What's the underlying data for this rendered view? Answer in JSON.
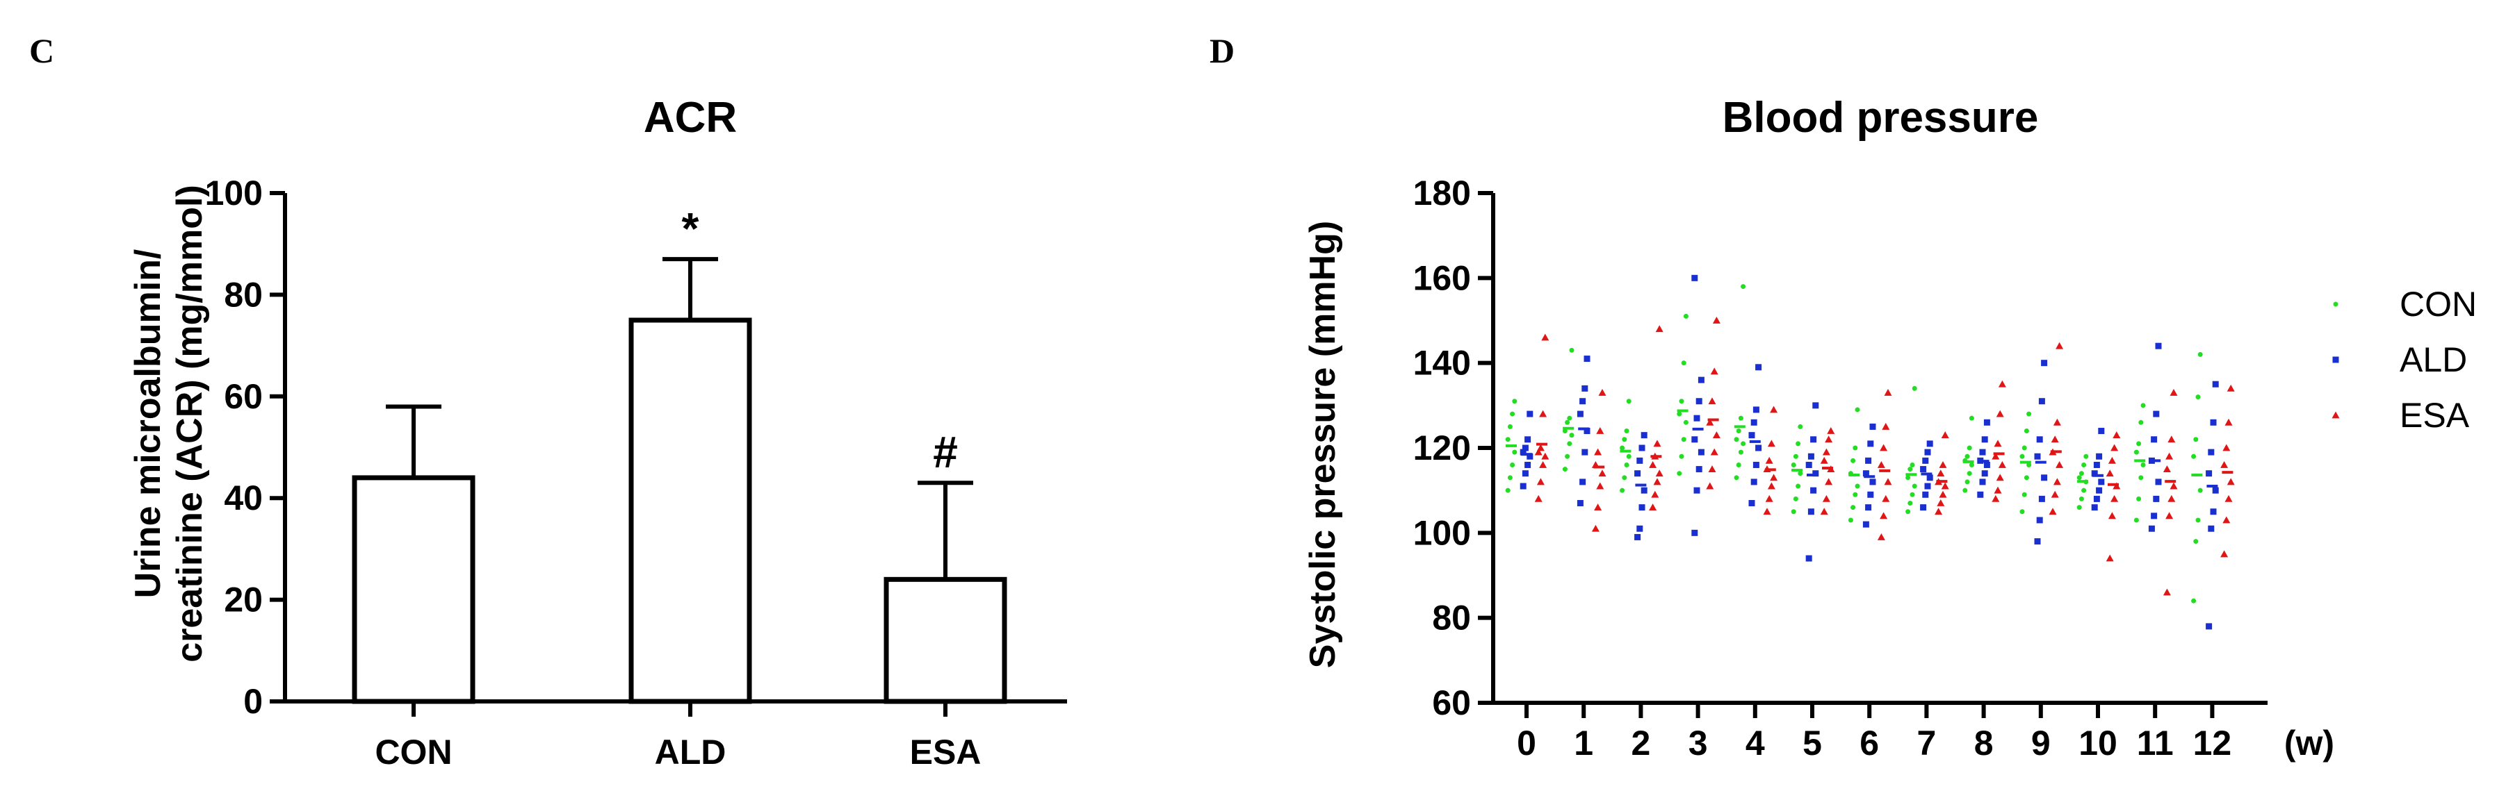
{
  "chart_data": [
    {
      "panel": "C",
      "type": "bar",
      "title": "ACR",
      "ylabel_line1": "Urine microalbumin/",
      "ylabel_line2": "creatinine (ACR) (mg/mmol)",
      "xlabel": "",
      "ylim": [
        0,
        100
      ],
      "yticks": [
        "0",
        "20",
        "40",
        "60",
        "80",
        "100"
      ],
      "categories": [
        "CON",
        "ALD",
        "ESA"
      ],
      "values": [
        44,
        75,
        24
      ],
      "errors": [
        14,
        12,
        19
      ],
      "annotations": [
        "",
        "*",
        "#"
      ]
    },
    {
      "panel": "D",
      "type": "scatter",
      "title": "Blood pressure",
      "ylabel": "Systolic pressure (mmHg)",
      "xunit": "(w)",
      "ylim": [
        60,
        180
      ],
      "yticks": [
        "60",
        "80",
        "100",
        "120",
        "140",
        "160",
        "180"
      ],
      "weeks": [
        "0",
        "1",
        "2",
        "3",
        "4",
        "5",
        "6",
        "7",
        "8",
        "9",
        "10",
        "11",
        "12"
      ],
      "series": [
        {
          "name": "CON",
          "color": "#22dd22",
          "marker": "dot",
          "points": [
            [
              110,
              113,
              116,
              119,
              122,
              125,
              128,
              131
            ],
            [
              115,
              118,
              121,
              123,
              124,
              126,
              127,
              143
            ],
            [
              110,
              113,
              116,
              118,
              120,
              122,
              124,
              131
            ],
            [
              114,
              118,
              122,
              126,
              128,
              131,
              140,
              151
            ],
            [
              113,
              116,
              119,
              121,
              122,
              124,
              127,
              158
            ],
            [
              105,
              108,
              111,
              114,
              116,
              118,
              121,
              125
            ],
            [
              103,
              106,
              109,
              111,
              114,
              117,
              120,
              129
            ],
            [
              105,
              107,
              109,
              111,
              113,
              115,
              116,
              134
            ],
            [
              110,
              112,
              114,
              116,
              117,
              118,
              120,
              127
            ],
            [
              105,
              109,
              113,
              116,
              118,
              120,
              124,
              128
            ],
            [
              106,
              108,
              110,
              112,
              113,
              114,
              116,
              118
            ],
            [
              103,
              108,
              113,
              116,
              119,
              121,
              126,
              130
            ],
            [
              84,
              98,
              103,
              110,
              118,
              122,
              132,
              142
            ]
          ]
        },
        {
          "name": "ALD",
          "color": "#1a2fd0",
          "marker": "square",
          "points": [
            [
              111,
              114,
              116,
              118,
              119,
              120,
              122,
              128
            ],
            [
              107,
              112,
              119,
              124,
              128,
              131,
              134,
              141
            ],
            [
              99,
              101,
              106,
              110,
              114,
              117,
              120,
              123
            ],
            [
              100,
              110,
              115,
              119,
              122,
              127,
              131,
              136,
              160
            ],
            [
              107,
              112,
              116,
              120,
              123,
              126,
              129,
              139
            ],
            [
              94,
              105,
              110,
              114,
              116,
              118,
              122,
              130
            ],
            [
              102,
              106,
              109,
              112,
              114,
              117,
              121,
              125
            ],
            [
              106,
              109,
              111,
              113,
              115,
              117,
              119,
              121
            ],
            [
              109,
              112,
              114,
              116,
              117,
              119,
              122,
              126
            ],
            [
              98,
              103,
              108,
              113,
              118,
              122,
              131,
              140
            ],
            [
              106,
              108,
              110,
              112,
              114,
              116,
              118,
              124
            ],
            [
              101,
              104,
              108,
              112,
              117,
              122,
              128,
              144
            ],
            [
              78,
              101,
              105,
              110,
              114,
              119,
              126,
              135
            ]
          ]
        },
        {
          "name": "ESA",
          "color": "#e01515",
          "marker": "triangle",
          "points": [
            [
              108,
              112,
              116,
              118,
              119,
              120,
              128,
              146
            ],
            [
              101,
              106,
              111,
              114,
              116,
              119,
              124,
              133
            ],
            [
              106,
              109,
              112,
              114,
              116,
              118,
              121,
              148
            ],
            [
              111,
              115,
              119,
              123,
              126,
              131,
              138,
              150
            ],
            [
              105,
              108,
              111,
              113,
              115,
              117,
              121,
              129
            ],
            [
              105,
              108,
              112,
              115,
              117,
              119,
              122,
              124
            ],
            [
              99,
              104,
              108,
              112,
              116,
              120,
              125,
              133
            ],
            [
              105,
              107,
              109,
              111,
              112,
              114,
              116,
              123
            ],
            [
              108,
              110,
              113,
              116,
              118,
              121,
              128,
              135
            ],
            [
              105,
              109,
              112,
              116,
              119,
              122,
              126,
              144
            ],
            [
              94,
              104,
              108,
              111,
              114,
              117,
              120,
              123
            ],
            [
              86,
              104,
              108,
              111,
              115,
              118,
              122,
              133
            ],
            [
              95,
              103,
              108,
              112,
              116,
              120,
              126,
              134
            ]
          ]
        }
      ]
    }
  ]
}
